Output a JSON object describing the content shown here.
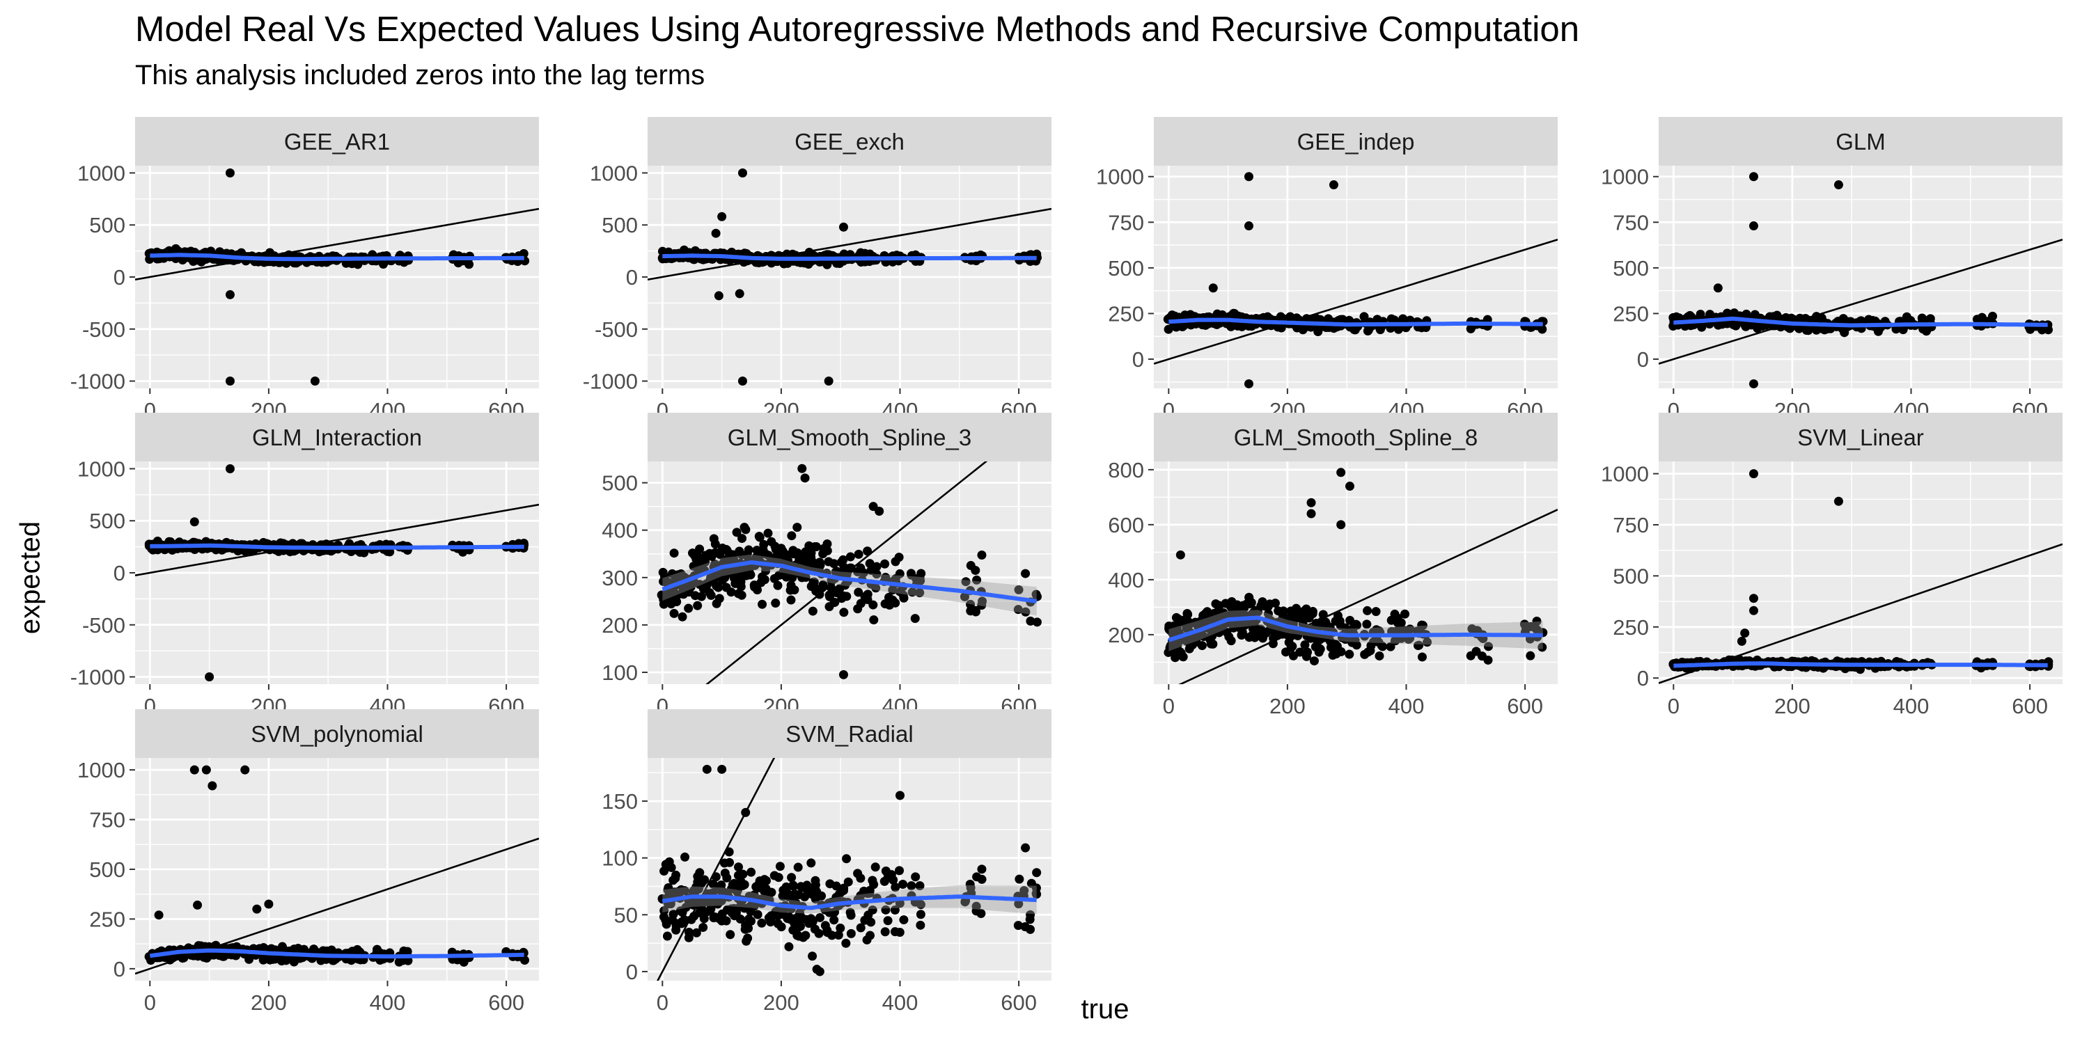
{
  "title": "Model Real Vs Expected Values Using Autoregressive Methods and Recursive Computation",
  "subtitle": "This analysis included zeros into the lag terms",
  "colors": {
    "panel_bg": "#ebebeb",
    "strip_bg": "#d9d9d9",
    "grid": "#ffffff",
    "point": "#000000",
    "smooth": "#3366ff",
    "ribbon": "#999999",
    "reference_line": "#000000",
    "tick_text": "#4d4d4d"
  },
  "chart_data": {
    "type": "scatter",
    "xlabel": "true",
    "ylabel": "expected",
    "facets": [
      {
        "name": "GEE_AR1",
        "xlim": [
          -25,
          655
        ],
        "ylim": [
          -1070,
          1070
        ],
        "x_ticks": [
          0,
          200,
          400,
          600
        ],
        "y_ticks": [
          -1000,
          -500,
          0,
          500,
          1000
        ],
        "reference_line": {
          "intercept": 0,
          "slope": 1
        },
        "smooth": [
          [
            0,
            205
          ],
          [
            50,
            212
          ],
          [
            100,
            205
          ],
          [
            150,
            185
          ],
          [
            200,
            175
          ],
          [
            250,
            172
          ],
          [
            300,
            175
          ],
          [
            400,
            178
          ],
          [
            500,
            180
          ],
          [
            630,
            182
          ]
        ],
        "outliers": [
          [
            135,
            1000
          ],
          [
            135,
            -170
          ],
          [
            135,
            -1000
          ],
          [
            278,
            -1000
          ]
        ],
        "cloud": {
          "base": 195,
          "spread": 60
        }
      },
      {
        "name": "GEE_exch",
        "xlim": [
          -25,
          655
        ],
        "ylim": [
          -1070,
          1070
        ],
        "x_ticks": [
          0,
          200,
          400,
          600
        ],
        "y_ticks": [
          -1000,
          -500,
          0,
          500,
          1000
        ],
        "reference_line": {
          "intercept": 0,
          "slope": 1
        },
        "smooth": [
          [
            0,
            200
          ],
          [
            50,
            205
          ],
          [
            100,
            200
          ],
          [
            150,
            182
          ],
          [
            200,
            175
          ],
          [
            300,
            177
          ],
          [
            400,
            180
          ],
          [
            500,
            181
          ],
          [
            630,
            182
          ]
        ],
        "outliers": [
          [
            135,
            1000
          ],
          [
            100,
            580
          ],
          [
            90,
            420
          ],
          [
            305,
            480
          ],
          [
            95,
            -180
          ],
          [
            130,
            -160
          ],
          [
            135,
            -1000
          ],
          [
            280,
            -1000
          ]
        ],
        "cloud": {
          "base": 190,
          "spread": 60
        }
      },
      {
        "name": "GEE_indep",
        "xlim": [
          -25,
          655
        ],
        "ylim": [
          -160,
          1060
        ],
        "x_ticks": [
          0,
          200,
          400,
          600
        ],
        "y_ticks": [
          0,
          250,
          500,
          750,
          1000
        ],
        "reference_line": {
          "intercept": 0,
          "slope": 1
        },
        "smooth": [
          [
            0,
            205
          ],
          [
            50,
            215
          ],
          [
            100,
            215
          ],
          [
            150,
            205
          ],
          [
            200,
            200
          ],
          [
            300,
            190
          ],
          [
            400,
            192
          ],
          [
            500,
            195
          ],
          [
            630,
            192
          ]
        ],
        "outliers": [
          [
            135,
            1000
          ],
          [
            135,
            730
          ],
          [
            278,
            955
          ],
          [
            75,
            390
          ],
          [
            135,
            -135
          ]
        ],
        "cloud": {
          "base": 200,
          "spread": 45
        }
      },
      {
        "name": "GLM",
        "xlim": [
          -25,
          655
        ],
        "ylim": [
          -160,
          1060
        ],
        "x_ticks": [
          0,
          200,
          400,
          600
        ],
        "y_ticks": [
          0,
          250,
          500,
          750,
          1000
        ],
        "reference_line": {
          "intercept": 0,
          "slope": 1
        },
        "smooth": [
          [
            0,
            200
          ],
          [
            50,
            210
          ],
          [
            100,
            222
          ],
          [
            150,
            208
          ],
          [
            200,
            195
          ],
          [
            300,
            185
          ],
          [
            400,
            190
          ],
          [
            500,
            192
          ],
          [
            630,
            188
          ]
        ],
        "outliers": [
          [
            135,
            1000
          ],
          [
            135,
            730
          ],
          [
            278,
            955
          ],
          [
            75,
            390
          ],
          [
            135,
            -135
          ]
        ],
        "cloud": {
          "base": 200,
          "spread": 45
        }
      },
      {
        "name": "GLM_Interaction",
        "xlim": [
          -25,
          655
        ],
        "ylim": [
          -1070,
          1070
        ],
        "x_ticks": [
          0,
          200,
          400,
          600
        ],
        "y_ticks": [
          -1000,
          -500,
          0,
          500,
          1000
        ],
        "reference_line": {
          "intercept": 0,
          "slope": 1
        },
        "smooth": [
          [
            0,
            255
          ],
          [
            50,
            258
          ],
          [
            100,
            262
          ],
          [
            150,
            255
          ],
          [
            200,
            245
          ],
          [
            300,
            240
          ],
          [
            400,
            242
          ],
          [
            500,
            245
          ],
          [
            630,
            250
          ]
        ],
        "outliers": [
          [
            135,
            1000
          ],
          [
            75,
            490
          ],
          [
            100,
            -1000
          ]
        ],
        "cloud": {
          "base": 250,
          "spread": 55
        }
      },
      {
        "name": "GLM_Smooth_Spline_3",
        "xlim": [
          -25,
          655
        ],
        "ylim": [
          75,
          545
        ],
        "x_ticks": [
          0,
          200,
          400,
          600
        ],
        "y_ticks": [
          100,
          200,
          300,
          400,
          500
        ],
        "reference_line": {
          "intercept": 0,
          "slope": 1
        },
        "smooth": [
          [
            0,
            275
          ],
          [
            50,
            298
          ],
          [
            100,
            322
          ],
          [
            150,
            332
          ],
          [
            200,
            325
          ],
          [
            250,
            310
          ],
          [
            300,
            298
          ],
          [
            400,
            285
          ],
          [
            500,
            272
          ],
          [
            630,
            250
          ]
        ],
        "ribbon_halfwidth": 12,
        "outliers": [
          [
            235,
            530
          ],
          [
            240,
            510
          ],
          [
            305,
            95
          ],
          [
            355,
            450
          ],
          [
            365,
            440
          ]
        ],
        "cloud": {
          "base": 290,
          "spread": 95
        }
      },
      {
        "name": "GLM_Smooth_Spline_8",
        "xlim": [
          -25,
          655
        ],
        "ylim": [
          20,
          830
        ],
        "x_ticks": [
          0,
          200,
          400,
          600
        ],
        "y_ticks": [
          200,
          400,
          600,
          800
        ],
        "reference_line": {
          "intercept": 0,
          "slope": 1
        },
        "smooth": [
          [
            0,
            180
          ],
          [
            50,
            215
          ],
          [
            100,
            255
          ],
          [
            150,
            262
          ],
          [
            200,
            230
          ],
          [
            250,
            210
          ],
          [
            300,
            198
          ],
          [
            400,
            198
          ],
          [
            500,
            200
          ],
          [
            630,
            198
          ]
        ],
        "ribbon_halfwidth": 20,
        "outliers": [
          [
            290,
            790
          ],
          [
            305,
            740
          ],
          [
            240,
            680
          ],
          [
            240,
            640
          ],
          [
            290,
            600
          ],
          [
            20,
            490
          ]
        ],
        "cloud": {
          "base": 200,
          "spread": 110
        }
      },
      {
        "name": "SVM_Linear",
        "xlim": [
          -25,
          655
        ],
        "ylim": [
          -30,
          1060
        ],
        "x_ticks": [
          0,
          200,
          400,
          600
        ],
        "y_ticks": [
          0,
          250,
          500,
          750,
          1000
        ],
        "reference_line": {
          "intercept": 0,
          "slope": 1
        },
        "smooth": [
          [
            0,
            60
          ],
          [
            50,
            65
          ],
          [
            100,
            70
          ],
          [
            150,
            72
          ],
          [
            200,
            68
          ],
          [
            300,
            65
          ],
          [
            400,
            65
          ],
          [
            500,
            65
          ],
          [
            630,
            63
          ]
        ],
        "outliers": [
          [
            135,
            1000
          ],
          [
            278,
            865
          ],
          [
            135,
            390
          ],
          [
            135,
            330
          ],
          [
            120,
            220
          ],
          [
            115,
            180
          ]
        ],
        "cloud": {
          "base": 62,
          "spread": 22
        }
      },
      {
        "name": "SVM_polynomial",
        "xlim": [
          -25,
          655
        ],
        "ylim": [
          -60,
          1060
        ],
        "x_ticks": [
          0,
          200,
          400,
          600
        ],
        "y_ticks": [
          0,
          250,
          500,
          750,
          1000
        ],
        "reference_line": {
          "intercept": 0,
          "slope": 1
        },
        "smooth": [
          [
            0,
            65
          ],
          [
            50,
            85
          ],
          [
            100,
            92
          ],
          [
            150,
            88
          ],
          [
            200,
            78
          ],
          [
            300,
            65
          ],
          [
            400,
            62
          ],
          [
            500,
            64
          ],
          [
            630,
            70
          ]
        ],
        "outliers": [
          [
            75,
            1000
          ],
          [
            95,
            1000
          ],
          [
            160,
            1000
          ],
          [
            105,
            920
          ],
          [
            80,
            320
          ],
          [
            200,
            325
          ],
          [
            180,
            300
          ],
          [
            15,
            270
          ]
        ],
        "cloud": {
          "base": 70,
          "spread": 40
        }
      },
      {
        "name": "SVM_Radial",
        "xlim": [
          -25,
          655
        ],
        "ylim": [
          -8,
          188
        ],
        "x_ticks": [
          0,
          200,
          400,
          600
        ],
        "y_ticks": [
          0,
          50,
          100,
          150
        ],
        "reference_line": {
          "intercept": 0,
          "slope": 1
        },
        "smooth": [
          [
            0,
            62
          ],
          [
            50,
            66
          ],
          [
            100,
            66
          ],
          [
            150,
            63
          ],
          [
            200,
            58
          ],
          [
            250,
            56
          ],
          [
            300,
            60
          ],
          [
            400,
            64
          ],
          [
            500,
            66
          ],
          [
            630,
            63
          ]
        ],
        "ribbon_halfwidth": 5,
        "outliers": [
          [
            75,
            178
          ],
          [
            100,
            178
          ],
          [
            400,
            155
          ],
          [
            260,
            2
          ],
          [
            265,
            0
          ],
          [
            140,
            140
          ]
        ],
        "cloud": {
          "base": 65,
          "spread": 45
        }
      }
    ]
  }
}
